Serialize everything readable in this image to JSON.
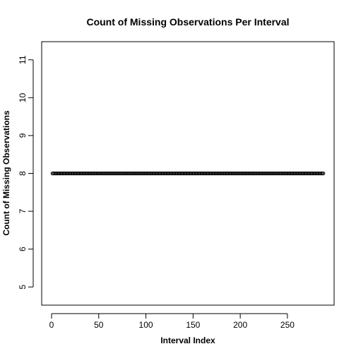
{
  "chart_data": {
    "type": "scatter",
    "title": "Count of Missing Observations Per Interval",
    "xlabel": "Interval Index",
    "ylabel": "Count of Missing Observations",
    "xlim": [
      -10.48,
      299.48
    ],
    "ylim": [
      4.52,
      11.48
    ],
    "x_ticks": [
      0,
      50,
      100,
      150,
      200,
      250
    ],
    "y_ticks": [
      5,
      6,
      7,
      8,
      9,
      10,
      11
    ],
    "grid": false,
    "legend": "none",
    "marker": "open-circle",
    "series": [
      {
        "x_start": 1,
        "x_end": 288,
        "y": 8
      }
    ]
  },
  "colors": {
    "foreground": "#000000",
    "background": "#ffffff"
  }
}
